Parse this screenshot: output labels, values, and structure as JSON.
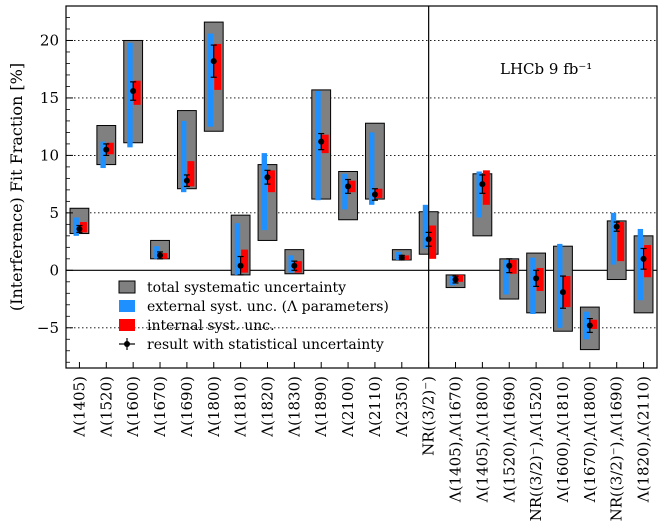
{
  "chart_data": {
    "type": "box",
    "ylabel": "(Interference) Fit Fraction [%]",
    "annotation": "LHCb 9 fb⁻¹",
    "ylim": [
      -8.5,
      23
    ],
    "yticks": [
      -5,
      0,
      5,
      10,
      15,
      20
    ],
    "grid": "horizontal dotted at major y ticks",
    "legend_position": "bottom-left",
    "legend": [
      {
        "key": "total",
        "label": "total systematic uncertainty"
      },
      {
        "key": "external",
        "label": "external syst. unc. (Λ parameters)"
      },
      {
        "key": "internal",
        "label": "internal syst. unc."
      },
      {
        "key": "stat",
        "label": "result with statistical uncertainty"
      }
    ],
    "colors": {
      "total": "#808080",
      "external": "#1e90ff",
      "internal": "#ff0000",
      "marker": "#000000"
    },
    "separator_after_index": 12,
    "categories": [
      "Λ(1405)",
      "Λ(1520)",
      "Λ(1600)",
      "Λ(1670)",
      "Λ(1690)",
      "Λ(1800)",
      "Λ(1810)",
      "Λ(1820)",
      "Λ(1830)",
      "Λ(1890)",
      "Λ(2100)",
      "Λ(2110)",
      "Λ(2350)",
      "NR((3/2)⁻)",
      "Λ(1405),Λ(1670)",
      "Λ(1405),Λ(1800)",
      "Λ(1520),Λ(1690)",
      "NR((3/2)⁻),Λ(1520)",
      "Λ(1600),Λ(1810)",
      "Λ(1670),Λ(1800)",
      "NR((3/2)⁻),Λ(1690)",
      "Λ(1820),Λ(2110)"
    ],
    "values": [
      3.6,
      10.5,
      15.6,
      1.3,
      7.8,
      18.2,
      0.4,
      8.1,
      0.4,
      11.2,
      7.3,
      6.6,
      1.1,
      2.7,
      -0.8,
      7.5,
      0.4,
      -0.7,
      -1.9,
      -4.8,
      3.8,
      1.0
    ],
    "stat_error": [
      0.3,
      0.5,
      0.8,
      0.3,
      0.5,
      1.4,
      0.8,
      0.6,
      0.4,
      0.7,
      0.6,
      0.5,
      0.2,
      0.6,
      0.3,
      0.8,
      0.6,
      0.7,
      1.4,
      0.6,
      0.4,
      0.9
    ],
    "total_syst": [
      [
        3.2,
        5.4
      ],
      [
        9.2,
        12.6
      ],
      [
        11.1,
        20.0
      ],
      [
        1.0,
        2.6
      ],
      [
        7.1,
        13.9
      ],
      [
        12.1,
        21.6
      ],
      [
        -0.4,
        4.8
      ],
      [
        2.6,
        9.2
      ],
      [
        -0.3,
        1.8
      ],
      [
        6.2,
        15.7
      ],
      [
        4.4,
        8.6
      ],
      [
        6.2,
        12.8
      ],
      [
        0.9,
        1.8
      ],
      [
        1.4,
        5.1
      ],
      [
        -1.5,
        -0.4
      ],
      [
        3.0,
        8.4
      ],
      [
        -2.5,
        1.0
      ],
      [
        -3.7,
        1.5
      ],
      [
        -5.3,
        2.1
      ],
      [
        -6.9,
        -3.2
      ],
      [
        -0.8,
        4.3
      ],
      [
        -3.7,
        3.0
      ]
    ],
    "external_syst": [
      [
        3.0,
        4.6
      ],
      [
        8.9,
        11.2
      ],
      [
        10.7,
        19.8
      ],
      [
        1.0,
        2.1
      ],
      [
        6.8,
        13.0
      ],
      [
        12.5,
        20.6
      ],
      [
        -0.4,
        4.1
      ],
      [
        3.5,
        10.2
      ],
      [
        -0.2,
        1.3
      ],
      [
        6.1,
        15.6
      ],
      [
        5.3,
        8.4
      ],
      [
        5.7,
        12.0
      ],
      [
        0.9,
        1.6
      ],
      [
        1.9,
        5.7
      ],
      [
        -1.3,
        -0.5
      ],
      [
        4.6,
        8.6
      ],
      [
        -2.1,
        0.9
      ],
      [
        -3.8,
        1.1
      ],
      [
        -5.0,
        2.3
      ],
      [
        -6.0,
        -3.6
      ],
      [
        0.5,
        5.0
      ],
      [
        -2.6,
        3.6
      ]
    ],
    "internal_syst": [
      [
        3.3,
        4.2
      ],
      [
        10.1,
        11.1
      ],
      [
        14.4,
        16.5
      ],
      [
        1.0,
        1.5
      ],
      [
        7.3,
        9.5
      ],
      [
        15.7,
        19.7
      ],
      [
        -0.2,
        1.8
      ],
      [
        6.8,
        8.7
      ],
      [
        -0.2,
        0.8
      ],
      [
        10.2,
        11.8
      ],
      [
        6.8,
        7.8
      ],
      [
        6.3,
        7.1
      ],
      [
        0.9,
        1.3
      ],
      [
        1.0,
        3.9
      ],
      [
        -1.0,
        -0.4
      ],
      [
        5.7,
        8.7
      ],
      [
        -0.3,
        0.9
      ],
      [
        -1.8,
        0.2
      ],
      [
        -3.2,
        -0.5
      ],
      [
        -5.1,
        -4.3
      ],
      [
        0.8,
        4.2
      ],
      [
        -0.6,
        2.2
      ]
    ]
  }
}
